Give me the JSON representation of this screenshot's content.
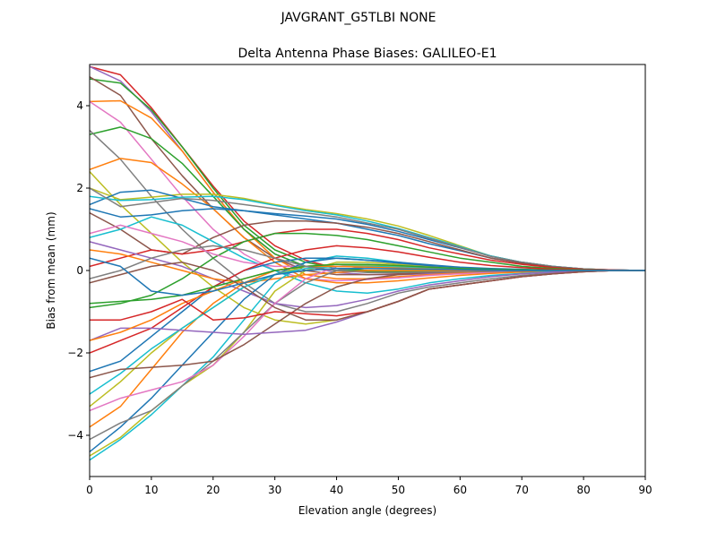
{
  "chart_data": {
    "type": "line",
    "suptitle": "JAVGRANT_G5TLBI NONE",
    "title": "Delta Antenna Phase Biases: GALILEO-E1",
    "xlabel": "Elevation angle (degrees)",
    "ylabel": "Bias from mean (mm)",
    "xlim": [
      0,
      90
    ],
    "ylim": [
      -5,
      5
    ],
    "xticks": [
      0,
      10,
      20,
      30,
      40,
      50,
      60,
      70,
      80,
      90
    ],
    "yticks": [
      -4,
      -2,
      0,
      2,
      4
    ],
    "ytick_labels": [
      "−4",
      "−2",
      "0",
      "2",
      "4"
    ],
    "grid": false,
    "x": [
      0,
      5,
      10,
      15,
      20,
      25,
      30,
      35,
      40,
      45,
      50,
      55,
      60,
      65,
      70,
      75,
      80,
      85,
      90
    ],
    "series": [
      {
        "color": "#d62728",
        "values": [
          4.95,
          4.75,
          3.95,
          3.0,
          2.05,
          1.2,
          0.6,
          0.25,
          0.05,
          0,
          -0.02,
          -0.03,
          -0.03,
          -0.02,
          -0.01,
          0,
          0,
          0,
          0
        ]
      },
      {
        "color": "#9467bd",
        "values": [
          4.95,
          4.6,
          3.85,
          2.9,
          1.9,
          1.0,
          0.4,
          0.1,
          -0.05,
          -0.1,
          -0.1,
          -0.08,
          -0.05,
          -0.03,
          -0.02,
          -0.01,
          0,
          0,
          0
        ]
      },
      {
        "color": "#2ca02c",
        "values": [
          4.65,
          4.55,
          3.9,
          3.0,
          2.0,
          1.1,
          0.5,
          0.2,
          0.05,
          0,
          0,
          0,
          0,
          0,
          0,
          0,
          0,
          0,
          0
        ]
      },
      {
        "color": "#8c564b",
        "values": [
          4.7,
          4.25,
          3.2,
          2.3,
          1.5,
          0.8,
          0.3,
          0,
          -0.1,
          -0.1,
          -0.08,
          -0.05,
          -0.03,
          -0.02,
          -0.01,
          0,
          0,
          0,
          0
        ]
      },
      {
        "color": "#ff7f0e",
        "values": [
          4.1,
          4.12,
          3.7,
          2.9,
          1.9,
          1.0,
          0.3,
          -0.1,
          -0.2,
          -0.2,
          -0.15,
          -0.1,
          -0.06,
          -0.03,
          -0.02,
          -0.01,
          0,
          0,
          0
        ]
      },
      {
        "color": "#e377c2",
        "values": [
          4.1,
          3.6,
          2.7,
          1.8,
          1.0,
          0.4,
          0,
          -0.2,
          -0.25,
          -0.22,
          -0.18,
          -0.12,
          -0.08,
          -0.05,
          -0.03,
          -0.01,
          0,
          0,
          0
        ]
      },
      {
        "color": "#2ca02c",
        "values": [
          3.3,
          3.48,
          3.2,
          2.6,
          1.8,
          1.0,
          0.4,
          0.1,
          0,
          -0.02,
          -0.02,
          -0.02,
          -0.01,
          0,
          0,
          0,
          0,
          0,
          0
        ]
      },
      {
        "color": "#7f7f7f",
        "values": [
          3.4,
          2.7,
          1.8,
          1.0,
          0.3,
          -0.3,
          -0.8,
          -1.0,
          -1.0,
          -0.8,
          -0.55,
          -0.4,
          -0.3,
          -0.2,
          -0.12,
          -0.06,
          -0.02,
          0,
          0
        ]
      },
      {
        "color": "#ff7f0e",
        "values": [
          2.45,
          2.72,
          2.62,
          2.1,
          1.5,
          0.8,
          0.2,
          -0.2,
          -0.3,
          -0.3,
          -0.25,
          -0.18,
          -0.12,
          -0.07,
          -0.04,
          -0.02,
          0,
          0,
          0
        ]
      },
      {
        "color": "#bcbd22",
        "values": [
          2.4,
          1.6,
          0.9,
          0.2,
          -0.4,
          -0.9,
          -1.2,
          -1.3,
          -1.2,
          -1.0,
          -0.75,
          -0.45,
          -0.35,
          -0.25,
          -0.15,
          -0.08,
          -0.03,
          0,
          0
        ]
      },
      {
        "color": "#bcbd22",
        "values": [
          2.0,
          1.72,
          1.78,
          1.85,
          1.85,
          1.75,
          1.6,
          1.48,
          1.38,
          1.25,
          1.08,
          0.85,
          0.6,
          0.35,
          0.2,
          0.1,
          0.04,
          0.01,
          0
        ]
      },
      {
        "color": "#1f77b4",
        "values": [
          1.6,
          1.9,
          1.95,
          1.75,
          1.55,
          1.45,
          1.38,
          1.32,
          1.25,
          1.12,
          0.95,
          0.75,
          0.55,
          0.35,
          0.2,
          0.1,
          0.04,
          0.01,
          0
        ]
      },
      {
        "color": "#17becf",
        "values": [
          1.8,
          1.7,
          1.72,
          1.78,
          1.8,
          1.72,
          1.58,
          1.45,
          1.35,
          1.2,
          1.02,
          0.8,
          0.58,
          0.35,
          0.2,
          0.1,
          0.04,
          0.01,
          0
        ]
      },
      {
        "color": "#7f7f7f",
        "values": [
          2.0,
          1.55,
          1.65,
          1.75,
          1.7,
          1.6,
          1.5,
          1.4,
          1.3,
          1.15,
          1.0,
          0.78,
          0.56,
          0.34,
          0.2,
          0.1,
          0.04,
          0.01,
          0
        ]
      },
      {
        "color": "#1f77b4",
        "values": [
          1.5,
          1.3,
          1.35,
          1.45,
          1.5,
          1.45,
          1.35,
          1.25,
          1.15,
          1.0,
          0.85,
          0.65,
          0.48,
          0.3,
          0.18,
          0.08,
          0.03,
          0.01,
          0
        ]
      },
      {
        "color": "#8c564b",
        "values": [
          1.4,
          1.0,
          0.5,
          0.4,
          0.8,
          1.1,
          1.2,
          1.2,
          1.15,
          1.05,
          0.9,
          0.7,
          0.5,
          0.3,
          0.18,
          0.08,
          0.03,
          0.01,
          0
        ]
      },
      {
        "color": "#d62728",
        "values": [
          0.1,
          0.3,
          0.5,
          0.4,
          0.5,
          0.7,
          0.9,
          1.0,
          1.0,
          0.9,
          0.75,
          0.55,
          0.4,
          0.25,
          0.15,
          0.07,
          0.03,
          0.01,
          0
        ]
      },
      {
        "color": "#2ca02c",
        "values": [
          -0.9,
          -0.8,
          -0.6,
          -0.2,
          0.3,
          0.7,
          0.9,
          0.9,
          0.85,
          0.75,
          0.6,
          0.45,
          0.3,
          0.2,
          0.1,
          0.05,
          0.02,
          0,
          0
        ]
      },
      {
        "color": "#17becf",
        "values": [
          0.8,
          1.0,
          1.3,
          1.1,
          0.7,
          0.3,
          0,
          -0.3,
          -0.5,
          -0.55,
          -0.45,
          -0.3,
          -0.2,
          -0.12,
          -0.07,
          -0.03,
          -0.01,
          0,
          0
        ]
      },
      {
        "color": "#e377c2",
        "values": [
          0.9,
          1.1,
          0.9,
          0.7,
          0.4,
          0.2,
          0.1,
          0.1,
          0.1,
          0.1,
          0.08,
          0.06,
          0.04,
          0.02,
          0.01,
          0,
          0,
          0,
          0
        ]
      },
      {
        "color": "#9467bd",
        "values": [
          0.7,
          0.5,
          0.3,
          0.1,
          -0.2,
          -0.5,
          -0.8,
          -0.9,
          -0.85,
          -0.7,
          -0.5,
          -0.35,
          -0.25,
          -0.15,
          -0.08,
          -0.04,
          -0.01,
          0,
          0
        ]
      },
      {
        "color": "#ff7f0e",
        "values": [
          0.5,
          0.4,
          0.2,
          0,
          -0.2,
          -0.3,
          -0.2,
          -0.1,
          -0.05,
          0,
          0,
          0,
          0,
          0,
          0,
          0,
          0,
          0,
          0
        ]
      },
      {
        "color": "#17becf",
        "values": [
          -4.6,
          -4.1,
          -3.5,
          -2.8,
          -2.1,
          -1.2,
          -0.3,
          0.2,
          0.35,
          0.3,
          0.2,
          0.12,
          0.07,
          0.04,
          0.02,
          0.01,
          0,
          0,
          0
        ]
      },
      {
        "color": "#bcbd22",
        "values": [
          -4.5,
          -4.05,
          -3.4,
          -2.8,
          -2.3,
          -1.5,
          -0.5,
          0,
          0.2,
          0.2,
          0.15,
          0.1,
          0.06,
          0.03,
          0.02,
          0.01,
          0,
          0,
          0
        ]
      },
      {
        "color": "#1f77b4",
        "values": [
          -4.4,
          -3.8,
          -3.1,
          -2.3,
          -1.5,
          -0.7,
          -0.1,
          0.2,
          0.3,
          0.25,
          0.18,
          0.12,
          0.07,
          0.04,
          0.02,
          0.01,
          0,
          0,
          0
        ]
      },
      {
        "color": "#7f7f7f",
        "values": [
          -4.1,
          -3.7,
          -3.4,
          -2.8,
          -2.2,
          -1.5,
          -0.8,
          -0.3,
          0,
          0.1,
          0.1,
          0.08,
          0.05,
          0.03,
          0.02,
          0.01,
          0,
          0,
          0
        ]
      },
      {
        "color": "#ff7f0e",
        "values": [
          -3.8,
          -3.3,
          -2.4,
          -1.5,
          -0.8,
          -0.3,
          0,
          0.1,
          0.15,
          0.12,
          0.1,
          0.07,
          0.04,
          0.02,
          0.01,
          0,
          0,
          0,
          0
        ]
      },
      {
        "color": "#e377c2",
        "values": [
          -3.4,
          -3.1,
          -2.9,
          -2.7,
          -2.3,
          -1.6,
          -0.8,
          -0.2,
          0.1,
          0.15,
          0.12,
          0.08,
          0.05,
          0.03,
          0.02,
          0.01,
          0,
          0,
          0
        ]
      },
      {
        "color": "#bcbd22",
        "values": [
          -3.3,
          -2.7,
          -2.0,
          -1.4,
          -0.9,
          -0.4,
          -0.1,
          0.1,
          0.15,
          0.12,
          0.1,
          0.06,
          0.04,
          0.02,
          0.01,
          0,
          0,
          0,
          0
        ]
      },
      {
        "color": "#17becf",
        "values": [
          -3.0,
          -2.5,
          -1.9,
          -1.4,
          -0.9,
          -0.4,
          -0.1,
          0.05,
          0.1,
          0.1,
          0.08,
          0.05,
          0.03,
          0.02,
          0.01,
          0,
          0,
          0,
          0
        ]
      },
      {
        "color": "#1f77b4",
        "values": [
          -2.45,
          -2.2,
          -1.6,
          -1.0,
          -0.4,
          0,
          0.2,
          0.3,
          0.3,
          0.25,
          0.2,
          0.14,
          0.08,
          0.05,
          0.03,
          0.01,
          0,
          0,
          0
        ]
      },
      {
        "color": "#8c564b",
        "values": [
          -2.6,
          -2.4,
          -2.35,
          -2.3,
          -2.2,
          -1.8,
          -1.3,
          -0.8,
          -0.4,
          -0.2,
          -0.1,
          -0.05,
          -0.03,
          -0.02,
          -0.01,
          0,
          0,
          0,
          0
        ]
      },
      {
        "color": "#d62728",
        "values": [
          -2.0,
          -1.7,
          -1.4,
          -0.9,
          -0.4,
          0,
          0.3,
          0.5,
          0.6,
          0.55,
          0.45,
          0.32,
          0.2,
          0.12,
          0.07,
          0.03,
          0.01,
          0,
          0
        ]
      },
      {
        "color": "#9467bd",
        "values": [
          -1.7,
          -1.4,
          -1.4,
          -1.45,
          -1.5,
          -1.55,
          -1.5,
          -1.45,
          -1.25,
          -1.0,
          -0.75,
          -0.45,
          -0.35,
          -0.25,
          -0.15,
          -0.08,
          -0.03,
          0,
          0
        ]
      },
      {
        "color": "#ff7f0e",
        "values": [
          -1.7,
          -1.5,
          -1.2,
          -0.8,
          -0.5,
          -0.2,
          0,
          0.1,
          0.1,
          0.08,
          0.06,
          0.04,
          0.02,
          0.01,
          0,
          0,
          0,
          0,
          0
        ]
      },
      {
        "color": "#d62728",
        "values": [
          -1.2,
          -1.2,
          -1.0,
          -0.7,
          -1.2,
          -1.15,
          -1.0,
          -1.05,
          -1.1,
          -1.0,
          -0.75,
          -0.45,
          -0.35,
          -0.25,
          -0.15,
          -0.08,
          -0.03,
          0,
          0
        ]
      },
      {
        "color": "#2ca02c",
        "values": [
          -0.8,
          -0.75,
          -0.7,
          -0.6,
          -0.4,
          -0.2,
          0,
          0.1,
          0.15,
          0.15,
          0.12,
          0.08,
          0.05,
          0.03,
          0.02,
          0.01,
          0,
          0,
          0
        ]
      },
      {
        "color": "#8c564b",
        "values": [
          -0.3,
          -0.1,
          0.1,
          0.2,
          0.0,
          -0.4,
          -0.9,
          -1.2,
          -1.2,
          -1.0,
          -0.75,
          -0.45,
          -0.35,
          -0.25,
          -0.15,
          -0.08,
          -0.03,
          0,
          0
        ]
      },
      {
        "color": "#7f7f7f",
        "values": [
          -0.2,
          0,
          0.3,
          0.5,
          0.6,
          0.5,
          0.3,
          0.1,
          0,
          -0.05,
          -0.05,
          -0.04,
          -0.03,
          -0.02,
          -0.01,
          0,
          0,
          0,
          0
        ]
      },
      {
        "color": "#1f77b4",
        "values": [
          0.3,
          0.1,
          -0.5,
          -0.6,
          -0.5,
          -0.3,
          -0.1,
          0,
          0.05,
          0.05,
          0.04,
          0.03,
          0.02,
          0.01,
          0,
          0,
          0,
          0,
          0
        ]
      }
    ]
  }
}
